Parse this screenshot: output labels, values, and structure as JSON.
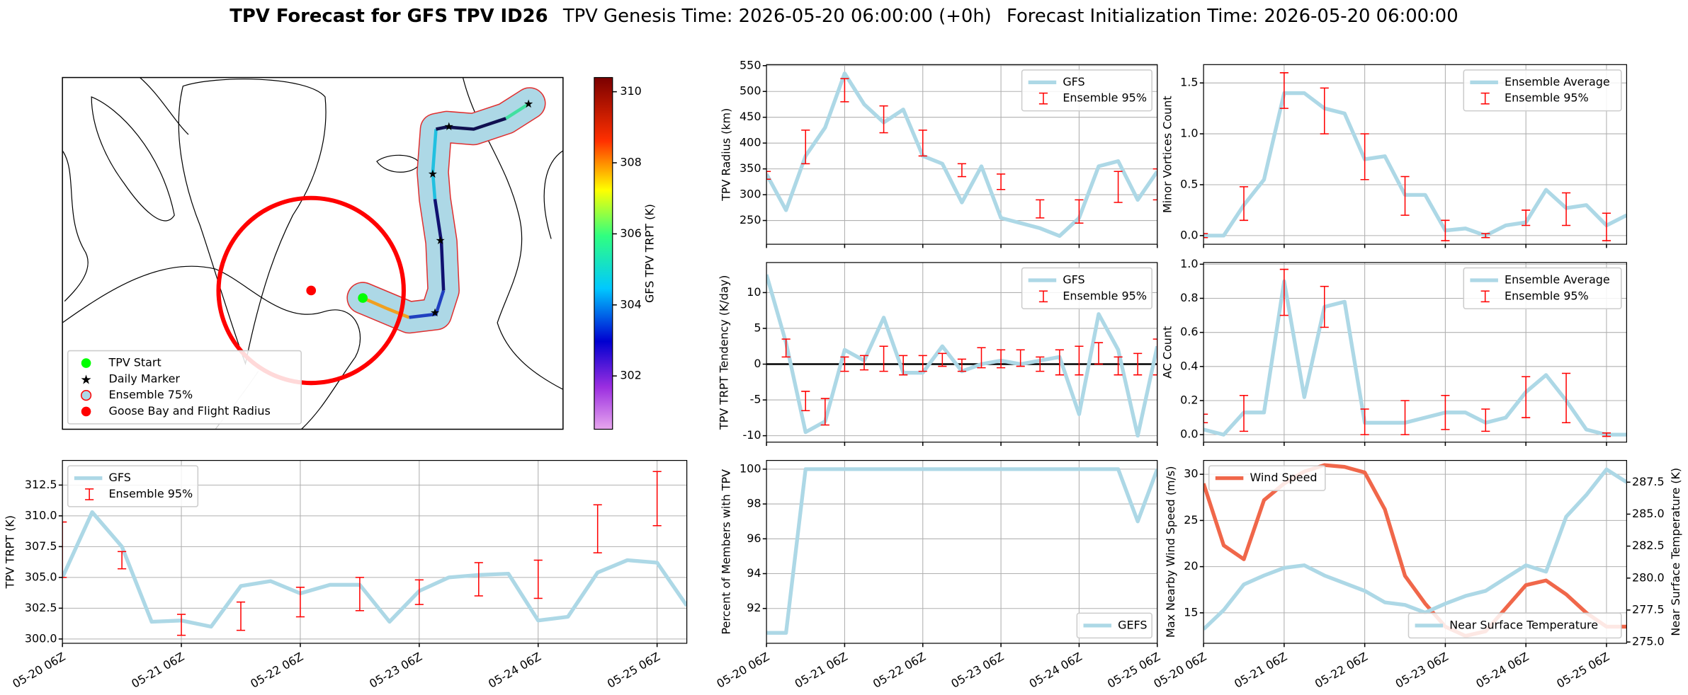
{
  "title": "TPV Forecast for GFS TPV ID26",
  "subtitle": [
    "TPV Genesis Time: 2026-05-20 06:00:00 (+0h)",
    "Forecast Initialization Time: 2026-05-20 06:00:00"
  ],
  "chart_data": [
    {
      "type": "map",
      "series": [
        {
          "name": "TPV Start",
          "color": "#00ff00",
          "marker": "circle"
        },
        {
          "name": "Daily Marker",
          "color": "#ff00ff",
          "marker": "star"
        },
        {
          "name": "Ensemble 75%",
          "color": "#add8e6",
          "edgecolor": "#ff0000",
          "marker": "circle"
        },
        {
          "name": "Goose Bay and Flight Radius",
          "color": "#ff0000",
          "marker": "circle"
        }
      ],
      "legend": "lower left",
      "colorbar": {
        "label": "GFS TPV TRPT (K)",
        "clim": [
          300.5,
          310.4
        ],
        "ticks": [
          302,
          304,
          306,
          308,
          310
        ]
      }
    },
    {
      "type": "line",
      "ylabel": "TPV TRPT (K)",
      "grid": true,
      "legend": "upper left",
      "xtick_labels": true,
      "xlim": [
        "05-20 06Z",
        "05-25 12Z"
      ],
      "xticks": [
        "05-20 06Z",
        "05-21 06Z",
        "05-22 06Z",
        "05-23 06Z",
        "05-24 06Z",
        "05-25 06Z"
      ],
      "ylim": [
        299.65,
        314.5
      ],
      "yticks": [
        {
          "value": 300,
          "label": "300.0"
        },
        302.5,
        {
          "value": 305,
          "label": "305.0"
        },
        307.5,
        {
          "value": 310,
          "label": "310.0"
        },
        312.5
      ],
      "series": [
        {
          "name": "GFS",
          "color": "#add8e6",
          "x": [
            "05-20 06Z",
            "05-20 12Z",
            "05-20 18Z",
            "05-21 00Z",
            "05-21 06Z",
            "05-21 12Z",
            "05-21 18Z",
            "05-22 00Z",
            "05-22 06Z",
            "05-22 12Z",
            "05-22 18Z",
            "05-23 00Z",
            "05-23 06Z",
            "05-23 12Z",
            "05-23 18Z",
            "05-24 00Z",
            "05-24 06Z",
            "05-24 12Z",
            "05-24 18Z",
            "05-25 00Z",
            "05-25 06Z",
            "05-25 12Z"
          ],
          "values": [
            305,
            310.3,
            307.5,
            301.4,
            301.5,
            301.0,
            304.3,
            304.7,
            303.7,
            304.4,
            304.4,
            301.4,
            303.9,
            305.0,
            305.2,
            305.3,
            301.5,
            301.8,
            305.4,
            306.4,
            306.2,
            302.7
          ]
        },
        {
          "name": "Ensemble 95%",
          "type": "errorbar",
          "color": "#ff0000",
          "x": [
            "05-20 06Z",
            "05-20 18Z",
            "05-21 06Z",
            "05-21 18Z",
            "05-22 06Z",
            "05-22 18Z",
            "05-23 06Z",
            "05-23 18Z",
            "05-24 06Z",
            "05-24 18Z",
            "05-25 06Z"
          ],
          "low": [
            305,
            305.7,
            300.3,
            300.7,
            301.8,
            302.3,
            302.8,
            303.5,
            303.3,
            307.0,
            309.2
          ],
          "high": [
            309.5,
            307.1,
            302.0,
            303.0,
            304.2,
            305.0,
            304.8,
            306.2,
            306.4,
            310.9,
            313.6
          ]
        }
      ]
    },
    {
      "type": "line",
      "ylabel": "TPV Radius (km)",
      "grid": true,
      "legend": "upper right",
      "xtick_labels": false,
      "xlim": [
        "05-20 06Z",
        "05-25 06Z"
      ],
      "xticks": [
        "05-20 06Z",
        "05-21 06Z",
        "05-22 06Z",
        "05-23 06Z",
        "05-24 06Z",
        "05-25 06Z"
      ],
      "ylim": [
        204,
        552
      ],
      "yticks": [
        250,
        300,
        350,
        400,
        450,
        500,
        550
      ],
      "series": [
        {
          "name": "GFS",
          "color": "#add8e6",
          "x": [
            "05-20 06Z",
            "05-20 12Z",
            "05-20 18Z",
            "05-21 00Z",
            "05-21 06Z",
            "05-21 12Z",
            "05-21 18Z",
            "05-22 00Z",
            "05-22 06Z",
            "05-22 12Z",
            "05-22 18Z",
            "05-23 00Z",
            "05-23 06Z",
            "05-23 12Z",
            "05-23 18Z",
            "05-24 00Z",
            "05-24 06Z",
            "05-24 12Z",
            "05-24 18Z",
            "05-25 00Z",
            "05-25 06Z"
          ],
          "values": [
            340,
            270,
            375,
            430,
            535,
            475,
            440,
            465,
            375,
            360,
            285,
            355,
            255,
            245,
            235,
            220,
            255,
            355,
            365,
            290,
            345
          ]
        },
        {
          "name": "Ensemble 95%",
          "type": "errorbar",
          "color": "#ff0000",
          "x": [
            "05-20 06Z",
            "05-20 18Z",
            "05-21 06Z",
            "05-21 18Z",
            "05-22 06Z",
            "05-22 18Z",
            "05-23 06Z",
            "05-23 18Z",
            "05-24 06Z",
            "05-24 18Z",
            "05-25 06Z"
          ],
          "low": [
            330,
            360,
            480,
            420,
            375,
            335,
            310,
            255,
            245,
            285,
            290
          ],
          "high": [
            345,
            425,
            525,
            472,
            425,
            360,
            340,
            290,
            290,
            345,
            350
          ]
        }
      ]
    },
    {
      "type": "line",
      "ylabel": "TPV TRPT Tendency (K/day)",
      "grid": true,
      "legend": "upper right",
      "xtick_labels": false,
      "hline": 0,
      "xlim": [
        "05-20 06Z",
        "05-25 06Z"
      ],
      "xticks": [
        "05-20 06Z",
        "05-21 06Z",
        "05-22 06Z",
        "05-23 06Z",
        "05-24 06Z",
        "05-25 06Z"
      ],
      "ylim": [
        -10.9,
        14.2
      ],
      "yticks": [
        -10,
        -5,
        0,
        5,
        10
      ],
      "series": [
        {
          "name": "GFS",
          "color": "#add8e6",
          "x": [
            "05-20 06Z",
            "05-20 12Z",
            "05-20 18Z",
            "05-21 00Z",
            "05-21 06Z",
            "05-21 12Z",
            "05-21 18Z",
            "05-22 00Z",
            "05-22 06Z",
            "05-22 12Z",
            "05-22 18Z",
            "05-23 00Z",
            "05-23 06Z",
            "05-23 12Z",
            "05-23 18Z",
            "05-24 00Z",
            "05-24 06Z",
            "05-24 12Z",
            "05-24 18Z",
            "05-25 00Z",
            "05-25 06Z"
          ],
          "values": [
            12.5,
            3,
            -9.5,
            -8,
            2,
            0.5,
            6.5,
            -1.2,
            -1.2,
            2.5,
            -1,
            0,
            0.5,
            0,
            0.5,
            1,
            -7,
            7,
            2,
            -10,
            2.5
          ]
        },
        {
          "name": "Ensemble 95%",
          "type": "errorbar",
          "color": "#ff0000",
          "x": [
            "05-20 12Z",
            "05-20 18Z",
            "05-21 00Z",
            "05-21 06Z",
            "05-21 12Z",
            "05-21 18Z",
            "05-22 00Z",
            "05-22 06Z",
            "05-22 12Z",
            "05-22 18Z",
            "05-23 00Z",
            "05-23 06Z",
            "05-23 12Z",
            "05-23 18Z",
            "05-24 00Z",
            "05-24 06Z",
            "05-24 12Z",
            "05-24 18Z",
            "05-25 00Z",
            "05-25 06Z"
          ],
          "low": [
            1,
            -6.5,
            -8.5,
            -1,
            -0.8,
            -1,
            -1.5,
            -1,
            -0.3,
            -1,
            -0.5,
            -0.5,
            -0.3,
            -1,
            -1.5,
            -1.5,
            0,
            -1.5,
            -1.5,
            -1.5
          ],
          "high": [
            3.5,
            -3.8,
            -4.8,
            1,
            1.2,
            2.5,
            1.2,
            1.2,
            1.5,
            0.7,
            2.3,
            2,
            2,
            1,
            2,
            2.5,
            3,
            1,
            1.5,
            3.5
          ]
        }
      ]
    },
    {
      "type": "line",
      "ylabel": "Percent of Members with TPV",
      "grid": true,
      "legend": "lower right",
      "xtick_labels": true,
      "xlim": [
        "05-20 06Z",
        "05-25 06Z"
      ],
      "xticks": [
        "05-20 06Z",
        "05-21 06Z",
        "05-22 06Z",
        "05-23 06Z",
        "05-24 06Z",
        "05-25 06Z"
      ],
      "ylim": [
        90.0,
        100.5
      ],
      "yticks": [
        92,
        94,
        96,
        98,
        100
      ],
      "series": [
        {
          "name": "GEFS",
          "color": "#add8e6",
          "x": [
            "05-20 06Z",
            "05-20 12Z",
            "05-20 18Z",
            "05-21 00Z",
            "05-21 06Z",
            "05-21 12Z",
            "05-21 18Z",
            "05-22 00Z",
            "05-22 06Z",
            "05-22 12Z",
            "05-22 18Z",
            "05-23 00Z",
            "05-23 06Z",
            "05-23 12Z",
            "05-23 18Z",
            "05-24 00Z",
            "05-24 06Z",
            "05-24 12Z",
            "05-24 18Z",
            "05-25 00Z",
            "05-25 06Z"
          ],
          "values": [
            90.6,
            90.6,
            100,
            100,
            100,
            100,
            100,
            100,
            100,
            100,
            100,
            100,
            100,
            100,
            100,
            100,
            100,
            100,
            100,
            97,
            100
          ]
        }
      ]
    },
    {
      "type": "line",
      "ylabel": "Minor Vortices Count",
      "grid": true,
      "legend": "upper right",
      "xtick_labels": false,
      "xlim": [
        "05-20 06Z",
        "05-25 12Z"
      ],
      "xticks": [
        "05-20 06Z",
        "05-21 06Z",
        "05-22 06Z",
        "05-23 06Z",
        "05-24 06Z",
        "05-25 06Z"
      ],
      "ylim": [
        -0.085,
        1.68
      ],
      "yticks": [
        {
          "value": 0,
          "label": "0.0"
        },
        0.5,
        {
          "value": 1,
          "label": "1.0"
        },
        1.5
      ],
      "series": [
        {
          "name": "Ensemble Average",
          "color": "#add8e6",
          "x": [
            "05-20 06Z",
            "05-20 12Z",
            "05-20 18Z",
            "05-21 00Z",
            "05-21 06Z",
            "05-21 12Z",
            "05-21 18Z",
            "05-22 00Z",
            "05-22 06Z",
            "05-22 12Z",
            "05-22 18Z",
            "05-23 00Z",
            "05-23 06Z",
            "05-23 12Z",
            "05-23 18Z",
            "05-24 00Z",
            "05-24 06Z",
            "05-24 12Z",
            "05-24 18Z",
            "05-25 00Z",
            "05-25 06Z",
            "05-25 12Z"
          ],
          "values": [
            0,
            0,
            0.3,
            0.55,
            1.4,
            1.4,
            1.25,
            1.2,
            0.75,
            0.78,
            0.4,
            0.4,
            0.05,
            0.07,
            0,
            0.1,
            0.13,
            0.45,
            0.27,
            0.3,
            0.1,
            0.2
          ]
        },
        {
          "name": "Ensemble 95%",
          "type": "errorbar",
          "color": "#ff0000",
          "x": [
            "05-20 06Z",
            "05-20 18Z",
            "05-21 06Z",
            "05-21 18Z",
            "05-22 06Z",
            "05-22 18Z",
            "05-23 06Z",
            "05-23 18Z",
            "05-24 06Z",
            "05-24 18Z",
            "05-25 06Z"
          ],
          "low": [
            -0.02,
            0.15,
            1.25,
            1.0,
            0.55,
            0.2,
            -0.05,
            -0.02,
            0.1,
            0.1,
            -0.05
          ],
          "high": [
            0.02,
            0.48,
            1.6,
            1.45,
            1.0,
            0.58,
            0.15,
            0.02,
            0.25,
            0.42,
            0.22
          ]
        }
      ]
    },
    {
      "type": "line",
      "ylabel": "AC Count",
      "grid": true,
      "legend": "upper right",
      "xtick_labels": false,
      "xlim": [
        "05-20 06Z",
        "05-25 12Z"
      ],
      "xticks": [
        "05-20 06Z",
        "05-21 06Z",
        "05-22 06Z",
        "05-23 06Z",
        "05-24 06Z",
        "05-25 06Z"
      ],
      "ylim": [
        -0.044,
        1.01
      ],
      "yticks": [
        {
          "value": 0,
          "label": "0.0"
        },
        0.2,
        0.4,
        0.6,
        0.8,
        {
          "value": 1,
          "label": "1.0"
        }
      ],
      "series": [
        {
          "name": "Ensemble Average",
          "color": "#add8e6",
          "x": [
            "05-20 06Z",
            "05-20 12Z",
            "05-20 18Z",
            "05-21 00Z",
            "05-21 06Z",
            "05-21 12Z",
            "05-21 18Z",
            "05-22 00Z",
            "05-22 06Z",
            "05-22 12Z",
            "05-22 18Z",
            "05-23 00Z",
            "05-23 06Z",
            "05-23 12Z",
            "05-23 18Z",
            "05-24 00Z",
            "05-24 06Z",
            "05-24 12Z",
            "05-24 18Z",
            "05-25 00Z",
            "05-25 06Z",
            "05-25 12Z"
          ],
          "values": [
            0.03,
            0,
            0.13,
            0.13,
            0.9,
            0.22,
            0.75,
            0.78,
            0.07,
            0.07,
            0.07,
            0.1,
            0.13,
            0.13,
            0.07,
            0.1,
            0.25,
            0.35,
            0.2,
            0.03,
            0,
            0
          ]
        },
        {
          "name": "Ensemble 95%",
          "type": "errorbar",
          "color": "#ff0000",
          "x": [
            "05-20 06Z",
            "05-20 18Z",
            "05-21 06Z",
            "05-21 18Z",
            "05-22 06Z",
            "05-22 18Z",
            "05-23 06Z",
            "05-23 18Z",
            "05-24 06Z",
            "05-24 18Z",
            "05-25 06Z"
          ],
          "low": [
            0.07,
            0.02,
            0.7,
            0.63,
            0,
            0,
            0.03,
            0.02,
            0.1,
            0.07,
            -0.01
          ],
          "high": [
            0.12,
            0.23,
            0.97,
            0.87,
            0.15,
            0.2,
            0.23,
            0.15,
            0.34,
            0.36,
            0.01
          ]
        }
      ]
    },
    {
      "type": "line",
      "ylabel": "Max Nearby Wind Speed (m/s)",
      "ylabel_color": "#f0674a",
      "y2label": "Near Surface Temperature (K)",
      "y2label_color": "#4169e1",
      "grid": true,
      "legend": "upper left",
      "legend_y2": "lower right",
      "xtick_labels": true,
      "xlim": [
        "05-20 06Z",
        "05-25 12Z"
      ],
      "xticks": [
        "05-20 06Z",
        "05-21 06Z",
        "05-22 06Z",
        "05-23 06Z",
        "05-24 06Z",
        "05-25 06Z"
      ],
      "ylim": [
        11.7,
        31.5
      ],
      "yticks": [
        15,
        20,
        25,
        30
      ],
      "y2lim": [
        274.9,
        289.2
      ],
      "y2ticks": [
        {
          "value": 275,
          "label": "275.0"
        },
        277.5,
        {
          "value": 280,
          "label": "280.0"
        },
        282.5,
        {
          "value": 285,
          "label": "285.0"
        },
        287.5
      ],
      "series": [
        {
          "name": "Wind Speed",
          "color": "#f0674a",
          "x": [
            "05-20 06Z",
            "05-20 12Z",
            "05-20 18Z",
            "05-21 00Z",
            "05-21 06Z",
            "05-21 12Z",
            "05-21 18Z",
            "05-22 00Z",
            "05-22 06Z",
            "05-22 12Z",
            "05-22 18Z",
            "05-23 00Z",
            "05-23 06Z",
            "05-23 12Z",
            "05-23 18Z",
            "05-24 00Z",
            "05-24 06Z",
            "05-24 12Z",
            "05-24 18Z",
            "05-25 00Z",
            "05-25 06Z",
            "05-25 12Z"
          ],
          "values": [
            29,
            22.3,
            20.8,
            27.2,
            29.0,
            30.3,
            31,
            30.8,
            30.2,
            26.2,
            19,
            16,
            13.5,
            12.5,
            13,
            15.5,
            18,
            18.5,
            17,
            15,
            13.5,
            13.5
          ]
        },
        {
          "name": "Near Surface Temperature",
          "color": "#add8e6",
          "axis": "y2",
          "x": [
            "05-20 06Z",
            "05-20 12Z",
            "05-20 18Z",
            "05-21 00Z",
            "05-21 06Z",
            "05-21 12Z",
            "05-21 18Z",
            "05-22 00Z",
            "05-22 06Z",
            "05-22 12Z",
            "05-22 18Z",
            "05-23 00Z",
            "05-23 06Z",
            "05-23 12Z",
            "05-23 18Z",
            "05-24 00Z",
            "05-24 06Z",
            "05-24 12Z",
            "05-24 18Z",
            "05-25 00Z",
            "05-25 06Z",
            "05-25 12Z"
          ],
          "values": [
            276.0,
            277.5,
            279.5,
            280.2,
            280.8,
            281.0,
            280.2,
            279.6,
            279.0,
            278.1,
            277.9,
            277.3,
            278.0,
            278.6,
            279.0,
            280.0,
            281.0,
            280.5,
            284.8,
            286.5,
            288.5,
            287.5
          ]
        }
      ]
    }
  ]
}
